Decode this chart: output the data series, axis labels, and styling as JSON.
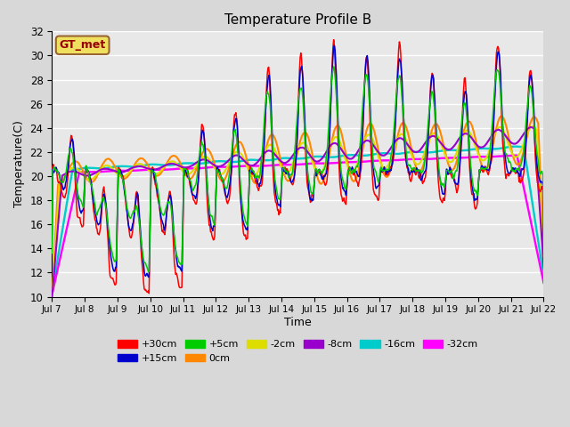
{
  "title": "Temperature Profile B",
  "xlabel": "Time",
  "ylabel": "Temperature(C)",
  "ylim": [
    10,
    32
  ],
  "annotation": "GT_met",
  "legend": [
    {
      "label": "+30cm",
      "color": "#ff0000"
    },
    {
      "label": "+15cm",
      "color": "#0000cc"
    },
    {
      "label": "+5cm",
      "color": "#00cc00"
    },
    {
      "label": "0cm",
      "color": "#ff8800"
    },
    {
      "label": "-2cm",
      "color": "#dddd00"
    },
    {
      "label": "-8cm",
      "color": "#9900cc"
    },
    {
      "label": "-16cm",
      "color": "#00cccc"
    },
    {
      "label": "-32cm",
      "color": "#ff00ff"
    }
  ],
  "xtick_labels": [
    "Jul 7",
    "Jul 8",
    "Jul 9",
    "Jul 10",
    "Jul 11",
    "Jul 12",
    "Jul 13",
    "Jul 14",
    "Jul 15",
    "Jul 16",
    "Jul 17",
    "Jul 18",
    "Jul 19",
    "Jul 20",
    "Jul 21",
    "Jul 22"
  ],
  "bg_color": "#e8e8e8",
  "grid_color": "#ffffff"
}
